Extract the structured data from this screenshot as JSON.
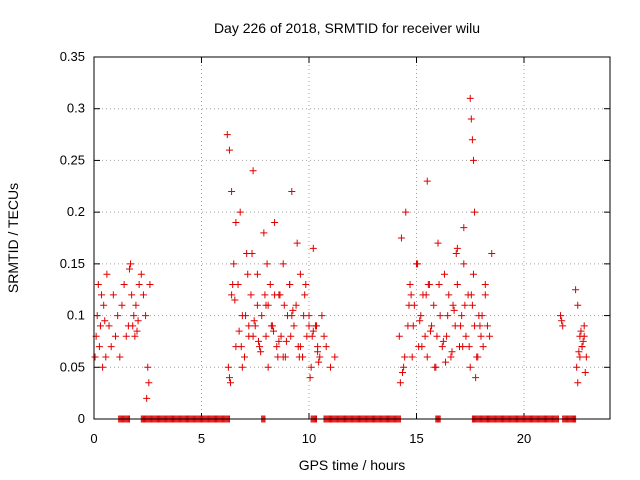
{
  "chart_data": {
    "type": "scatter",
    "title": "Day 226 of 2018, SRMTID for receiver wilu",
    "xlabel": "GPS time / hours",
    "ylabel": "SRMTID / TECUs",
    "xlim": [
      0,
      24
    ],
    "ylim": [
      0,
      0.35
    ],
    "xticks": [
      0,
      5,
      10,
      15,
      20
    ],
    "xtick_labels": [
      "0",
      "5",
      "10",
      "15",
      "20"
    ],
    "yticks": [
      0,
      0.05,
      0.1,
      0.15,
      0.2,
      0.25,
      0.3,
      0.35
    ],
    "ytick_labels": [
      "0",
      "0.05",
      "0.1",
      "0.15",
      "0.2",
      "0.25",
      "0.3",
      "0.35"
    ],
    "grid": true,
    "marker": "+",
    "color": "#e00000",
    "series": [
      {
        "name": "SRMTID",
        "x": [
          0.05,
          0.1,
          0.15,
          0.2,
          0.25,
          0.3,
          0.35,
          0.4,
          0.45,
          0.5,
          0.55,
          0.6,
          0.7,
          0.8,
          0.9,
          1.0,
          1.1,
          1.2,
          1.3,
          1.4,
          1.5,
          1.6,
          1.65,
          1.7,
          1.75,
          1.8,
          1.85,
          1.9,
          1.95,
          2.0,
          2.05,
          2.1,
          2.2,
          2.3,
          2.4,
          2.5,
          2.45,
          2.55,
          2.6,
          6.2,
          6.3,
          6.4,
          6.5,
          6.6,
          6.7,
          6.8,
          6.9,
          7.0,
          7.1,
          7.2,
          7.3,
          7.4,
          7.5,
          7.6,
          7.7,
          7.8,
          7.9,
          8.0,
          8.1,
          8.2,
          8.3,
          8.4,
          8.5,
          8.6,
          8.7,
          8.8,
          8.9,
          9.0,
          9.1,
          9.2,
          9.3,
          9.4,
          9.5,
          9.6,
          9.7,
          9.8,
          9.9,
          10.0,
          10.1,
          10.2,
          10.3,
          10.4,
          10.5,
          10.6,
          10.7,
          10.8,
          11.0,
          11.2,
          6.25,
          6.45,
          6.75,
          7.05,
          7.35,
          7.65,
          7.95,
          8.25,
          8.55,
          8.85,
          9.15,
          9.45,
          9.75,
          10.05,
          10.35,
          6.35,
          6.55,
          6.85,
          7.15,
          7.45,
          7.75,
          8.05,
          8.35,
          8.65,
          8.95,
          9.25,
          9.55,
          9.85,
          10.15,
          10.45,
          6.3,
          6.6,
          7.2,
          7.6,
          8.0,
          8.4,
          8.8,
          9.2,
          9.6,
          10.0,
          10.4,
          6.4,
          6.9,
          7.4,
          8.1,
          8.6,
          9.1,
          9.7,
          10.2,
          14.2,
          14.3,
          14.4,
          14.5,
          14.6,
          14.7,
          14.8,
          14.9,
          15.0,
          15.1,
          15.2,
          15.3,
          15.4,
          15.5,
          15.6,
          15.7,
          15.8,
          15.9,
          16.0,
          16.1,
          16.2,
          16.3,
          16.4,
          16.5,
          16.6,
          16.7,
          16.8,
          16.9,
          17.0,
          17.1,
          17.2,
          17.3,
          17.4,
          17.5,
          17.6,
          17.7,
          17.8,
          17.9,
          18.0,
          18.1,
          18.2,
          18.3,
          18.4,
          18.5,
          14.25,
          14.45,
          14.65,
          14.85,
          15.05,
          15.25,
          15.45,
          15.65,
          15.85,
          16.05,
          16.25,
          16.45,
          16.65,
          16.85,
          17.05,
          17.25,
          17.45,
          17.65,
          17.85,
          18.05,
          14.35,
          14.75,
          15.15,
          15.55,
          15.95,
          16.35,
          16.75,
          17.15,
          17.55,
          17.95,
          17.5,
          17.55,
          17.6,
          17.65,
          17.7,
          17.75,
          15.5,
          16.9,
          17.2,
          18.2,
          21.7,
          21.8,
          22.4,
          22.5,
          22.6,
          22.7,
          22.8,
          22.9,
          22.45,
          22.55,
          22.65,
          22.75,
          22.85,
          21.75,
          22.5,
          22.6,
          22.7,
          22.8
        ],
        "y": [
          0.06,
          0.08,
          0.1,
          0.13,
          0.07,
          0.09,
          0.12,
          0.05,
          0.11,
          0.095,
          0.06,
          0.14,
          0.09,
          0.07,
          0.12,
          0.08,
          0.1,
          0.06,
          0.11,
          0.13,
          0.08,
          0.09,
          0.145,
          0.15,
          0.12,
          0.09,
          0.1,
          0.08,
          0.11,
          0.085,
          0.095,
          0.13,
          0.14,
          0.12,
          0.1,
          0.05,
          0.02,
          0.035,
          0.13,
          0.275,
          0.26,
          0.22,
          0.15,
          0.19,
          0.13,
          0.2,
          0.1,
          0.06,
          0.16,
          0.08,
          0.12,
          0.24,
          0.09,
          0.14,
          0.07,
          0.1,
          0.18,
          0.11,
          0.05,
          0.13,
          0.09,
          0.19,
          0.07,
          0.12,
          0.08,
          0.15,
          0.06,
          0.1,
          0.13,
          0.22,
          0.09,
          0.11,
          0.07,
          0.14,
          0.06,
          0.12,
          0.08,
          0.1,
          0.05,
          0.165,
          0.09,
          0.07,
          0.06,
          0.1,
          0.08,
          0.07,
          0.05,
          0.06,
          0.05,
          0.13,
          0.085,
          0.1,
          0.16,
          0.075,
          0.12,
          0.09,
          0.06,
          0.11,
          0.08,
          0.17,
          0.1,
          0.04,
          0.09,
          0.035,
          0.115,
          0.07,
          0.14,
          0.095,
          0.065,
          0.15,
          0.085,
          0.12,
          0.075,
          0.105,
          0.06,
          0.13,
          0.08,
          0.055,
          0.04,
          0.07,
          0.09,
          0.11,
          0.08,
          0.12,
          0.06,
          0.1,
          0.07,
          0.09,
          0.065,
          0.12,
          0.05,
          0.08,
          0.11,
          0.075,
          0.13,
          0.06,
          0.085,
          0.08,
          0.175,
          0.05,
          0.2,
          0.09,
          0.13,
          0.06,
          0.11,
          0.15,
          0.07,
          0.1,
          0.12,
          0.08,
          0.06,
          0.13,
          0.09,
          0.11,
          0.05,
          0.17,
          0.1,
          0.07,
          0.14,
          0.08,
          0.12,
          0.06,
          0.11,
          0.09,
          0.13,
          0.07,
          0.1,
          0.15,
          0.08,
          0.12,
          0.05,
          0.11,
          0.09,
          0.06,
          0.1,
          0.08,
          0.07,
          0.12,
          0.09,
          0.08,
          0.16,
          0.035,
          0.06,
          0.11,
          0.09,
          0.15,
          0.07,
          0.12,
          0.085,
          0.05,
          0.13,
          0.075,
          0.1,
          0.065,
          0.16,
          0.09,
          0.11,
          0.07,
          0.14,
          0.06,
          0.1,
          0.045,
          0.12,
          0.095,
          0.13,
          0.08,
          0.055,
          0.105,
          0.07,
          0.12,
          0.09,
          0.31,
          0.29,
          0.27,
          0.25,
          0.2,
          0.04,
          0.23,
          0.165,
          0.185,
          0.13,
          0.1,
          0.09,
          0.125,
          0.11,
          0.08,
          0.07,
          0.09,
          0.06,
          0.05,
          0.065,
          0.085,
          0.075,
          0.045,
          0.095,
          0.035,
          0.06,
          0.07,
          0.08
        ]
      }
    ],
    "zero_segments": [
      [
        1.15,
        1.65
      ],
      [
        2.2,
        6.3
      ],
      [
        7.8,
        7.95
      ],
      [
        10.1,
        10.35
      ],
      [
        10.7,
        14.25
      ],
      [
        15.9,
        16.1
      ],
      [
        17.6,
        18.3
      ],
      [
        18.3,
        21.6
      ],
      [
        21.8,
        22.4
      ]
    ]
  }
}
